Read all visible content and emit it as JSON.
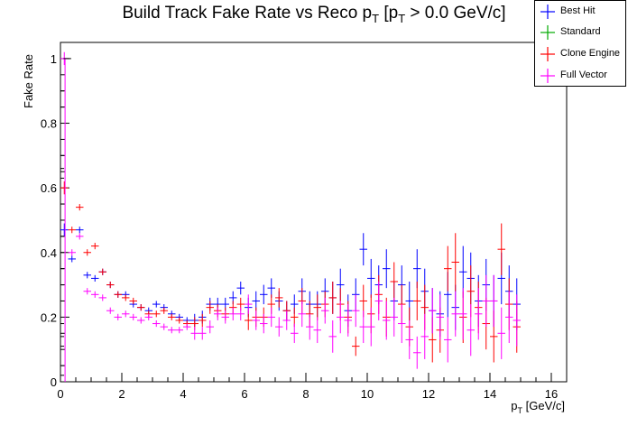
{
  "chart_data": {
    "type": "scatter",
    "title_prefix": "Build Track Fake Rate vs Reco p",
    "title_sub1": "T",
    "title_mid": " [p",
    "title_sub2": "T",
    "title_suffix": " > 0.0 GeV/c]",
    "xlabel_main": "p",
    "xlabel_sub": "T",
    "xlabel_unit": " [GeV/c]",
    "ylabel": "Fake Rate",
    "xlim": [
      0,
      16.5
    ],
    "ylim": [
      0,
      1.05
    ],
    "xticks": [
      0,
      2,
      4,
      6,
      8,
      10,
      12,
      14,
      16
    ],
    "yticks": [
      0,
      0.2,
      0.4,
      0.6,
      0.8,
      1
    ],
    "ytick_labels": [
      "0",
      "0.2",
      "0.4",
      "0.6",
      "0.8",
      "1"
    ],
    "legend_position": "top-right",
    "series": [
      {
        "name": "Best Hit",
        "color": "#0000ff",
        "points": [
          [
            0.125,
            0.47,
            0.02
          ],
          [
            0.375,
            0.38,
            0.01
          ],
          [
            0.625,
            0.47,
            0.01
          ],
          [
            0.875,
            0.33,
            0.01
          ],
          [
            1.125,
            0.32,
            0.01
          ],
          [
            1.375,
            0.34,
            0.01
          ],
          [
            1.625,
            0.3,
            0.01
          ],
          [
            1.875,
            0.27,
            0.01
          ],
          [
            2.125,
            0.27,
            0.01
          ],
          [
            2.375,
            0.24,
            0.01
          ],
          [
            2.625,
            0.23,
            0.01
          ],
          [
            2.875,
            0.22,
            0.01
          ],
          [
            3.125,
            0.24,
            0.01
          ],
          [
            3.375,
            0.23,
            0.01
          ],
          [
            3.625,
            0.21,
            0.01
          ],
          [
            3.875,
            0.2,
            0.01
          ],
          [
            4.125,
            0.19,
            0.01
          ],
          [
            4.375,
            0.19,
            0.02
          ],
          [
            4.625,
            0.2,
            0.02
          ],
          [
            4.875,
            0.24,
            0.02
          ],
          [
            5.125,
            0.24,
            0.02
          ],
          [
            5.375,
            0.24,
            0.02
          ],
          [
            5.625,
            0.26,
            0.02
          ],
          [
            5.875,
            0.29,
            0.02
          ],
          [
            6.125,
            0.23,
            0.03
          ],
          [
            6.375,
            0.25,
            0.03
          ],
          [
            6.625,
            0.27,
            0.03
          ],
          [
            6.875,
            0.29,
            0.03
          ],
          [
            7.125,
            0.25,
            0.03
          ],
          [
            7.375,
            0.22,
            0.03
          ],
          [
            7.625,
            0.24,
            0.03
          ],
          [
            7.875,
            0.28,
            0.04
          ],
          [
            8.125,
            0.24,
            0.04
          ],
          [
            8.375,
            0.24,
            0.04
          ],
          [
            8.625,
            0.28,
            0.04
          ],
          [
            8.875,
            0.26,
            0.05
          ],
          [
            9.125,
            0.3,
            0.05
          ],
          [
            9.375,
            0.22,
            0.05
          ],
          [
            9.625,
            0.27,
            0.05
          ],
          [
            9.875,
            0.41,
            0.05
          ],
          [
            10.125,
            0.32,
            0.06
          ],
          [
            10.375,
            0.3,
            0.06
          ],
          [
            10.625,
            0.35,
            0.06
          ],
          [
            10.875,
            0.25,
            0.06
          ],
          [
            11.125,
            0.3,
            0.06
          ],
          [
            11.375,
            0.25,
            0.06
          ],
          [
            11.625,
            0.35,
            0.06
          ],
          [
            11.875,
            0.28,
            0.07
          ],
          [
            12.125,
            0.22,
            0.07
          ],
          [
            12.375,
            0.21,
            0.07
          ],
          [
            12.625,
            0.27,
            0.07
          ],
          [
            12.875,
            0.23,
            0.07
          ],
          [
            13.125,
            0.34,
            0.08
          ],
          [
            13.375,
            0.32,
            0.08
          ],
          [
            13.625,
            0.25,
            0.08
          ],
          [
            13.875,
            0.3,
            0.08
          ],
          [
            14.125,
            0.25,
            0.08
          ],
          [
            14.375,
            0.32,
            0.08
          ],
          [
            14.625,
            0.28,
            0.08
          ],
          [
            14.875,
            0.24,
            0.08
          ]
        ]
      },
      {
        "name": "Standard",
        "color": "#00aa00",
        "points": []
      },
      {
        "name": "Clone Engine",
        "color": "#ff0000",
        "points": [
          [
            0.125,
            0.6,
            0.02
          ],
          [
            0.375,
            0.47,
            0.01
          ],
          [
            0.625,
            0.54,
            0.01
          ],
          [
            0.875,
            0.4,
            0.01
          ],
          [
            1.125,
            0.42,
            0.01
          ],
          [
            1.375,
            0.34,
            0.01
          ],
          [
            1.625,
            0.3,
            0.01
          ],
          [
            1.875,
            0.27,
            0.01
          ],
          [
            2.125,
            0.26,
            0.01
          ],
          [
            2.375,
            0.25,
            0.01
          ],
          [
            2.625,
            0.23,
            0.01
          ],
          [
            2.875,
            0.21,
            0.01
          ],
          [
            3.125,
            0.21,
            0.01
          ],
          [
            3.375,
            0.22,
            0.01
          ],
          [
            3.625,
            0.2,
            0.01
          ],
          [
            3.875,
            0.19,
            0.01
          ],
          [
            4.125,
            0.18,
            0.01
          ],
          [
            4.375,
            0.18,
            0.02
          ],
          [
            4.625,
            0.19,
            0.02
          ],
          [
            4.875,
            0.23,
            0.02
          ],
          [
            5.125,
            0.22,
            0.02
          ],
          [
            5.375,
            0.21,
            0.02
          ],
          [
            5.625,
            0.23,
            0.02
          ],
          [
            5.875,
            0.24,
            0.02
          ],
          [
            6.125,
            0.19,
            0.03
          ],
          [
            6.375,
            0.2,
            0.03
          ],
          [
            6.625,
            0.2,
            0.03
          ],
          [
            6.875,
            0.24,
            0.03
          ],
          [
            7.125,
            0.26,
            0.03
          ],
          [
            7.375,
            0.22,
            0.03
          ],
          [
            7.625,
            0.2,
            0.03
          ],
          [
            7.875,
            0.25,
            0.04
          ],
          [
            8.125,
            0.21,
            0.04
          ],
          [
            8.375,
            0.23,
            0.04
          ],
          [
            8.625,
            0.24,
            0.04
          ],
          [
            8.875,
            0.26,
            0.05
          ],
          [
            9.125,
            0.24,
            0.05
          ],
          [
            9.375,
            0.2,
            0.05
          ],
          [
            9.625,
            0.11,
            0.03
          ],
          [
            9.875,
            0.25,
            0.05
          ],
          [
            10.125,
            0.21,
            0.06
          ],
          [
            10.375,
            0.27,
            0.06
          ],
          [
            10.625,
            0.2,
            0.06
          ],
          [
            10.875,
            0.31,
            0.06
          ],
          [
            11.125,
            0.24,
            0.06
          ],
          [
            11.375,
            0.17,
            0.06
          ],
          [
            11.625,
            0.25,
            0.06
          ],
          [
            11.875,
            0.23,
            0.07
          ],
          [
            12.125,
            0.13,
            0.07
          ],
          [
            12.375,
            0.16,
            0.07
          ],
          [
            12.625,
            0.35,
            0.07
          ],
          [
            12.875,
            0.37,
            0.09
          ],
          [
            13.125,
            0.2,
            0.08
          ],
          [
            13.375,
            0.28,
            0.08
          ],
          [
            13.625,
            0.23,
            0.08
          ],
          [
            13.875,
            0.18,
            0.08
          ],
          [
            14.125,
            0.14,
            0.08
          ],
          [
            14.375,
            0.41,
            0.08
          ],
          [
            14.625,
            0.24,
            0.08
          ],
          [
            14.875,
            0.17,
            0.08
          ]
        ]
      },
      {
        "name": "Full Vector",
        "color": "#ff00ff",
        "points": [
          [
            0.125,
            1.0,
            0.02
          ],
          [
            0.375,
            0.4,
            0.01
          ],
          [
            0.625,
            0.45,
            0.01
          ],
          [
            0.875,
            0.28,
            0.01
          ],
          [
            1.125,
            0.27,
            0.01
          ],
          [
            1.375,
            0.26,
            0.01
          ],
          [
            1.625,
            0.22,
            0.01
          ],
          [
            1.875,
            0.2,
            0.01
          ],
          [
            2.125,
            0.21,
            0.01
          ],
          [
            2.375,
            0.2,
            0.01
          ],
          [
            2.625,
            0.19,
            0.01
          ],
          [
            2.875,
            0.2,
            0.01
          ],
          [
            3.125,
            0.18,
            0.01
          ],
          [
            3.375,
            0.17,
            0.01
          ],
          [
            3.625,
            0.16,
            0.01
          ],
          [
            3.875,
            0.16,
            0.01
          ],
          [
            4.125,
            0.17,
            0.01
          ],
          [
            4.375,
            0.15,
            0.02
          ],
          [
            4.625,
            0.15,
            0.02
          ],
          [
            4.875,
            0.17,
            0.02
          ],
          [
            5.125,
            0.21,
            0.02
          ],
          [
            5.375,
            0.2,
            0.02
          ],
          [
            5.625,
            0.21,
            0.02
          ],
          [
            5.875,
            0.21,
            0.02
          ],
          [
            6.125,
            0.24,
            0.03
          ],
          [
            6.375,
            0.19,
            0.03
          ],
          [
            6.625,
            0.18,
            0.03
          ],
          [
            6.875,
            0.2,
            0.03
          ],
          [
            7.125,
            0.17,
            0.03
          ],
          [
            7.375,
            0.19,
            0.03
          ],
          [
            7.625,
            0.15,
            0.03
          ],
          [
            7.875,
            0.21,
            0.04
          ],
          [
            8.125,
            0.17,
            0.04
          ],
          [
            8.375,
            0.16,
            0.04
          ],
          [
            8.625,
            0.22,
            0.04
          ],
          [
            8.875,
            0.14,
            0.05
          ],
          [
            9.125,
            0.2,
            0.05
          ],
          [
            9.375,
            0.19,
            0.05
          ],
          [
            9.625,
            0.22,
            0.05
          ],
          [
            9.875,
            0.17,
            0.05
          ],
          [
            10.125,
            0.17,
            0.06
          ],
          [
            10.375,
            0.25,
            0.06
          ],
          [
            10.625,
            0.19,
            0.06
          ],
          [
            10.875,
            0.2,
            0.06
          ],
          [
            11.125,
            0.18,
            0.06
          ],
          [
            11.375,
            0.13,
            0.06
          ],
          [
            11.625,
            0.09,
            0.05
          ],
          [
            11.875,
            0.14,
            0.07
          ],
          [
            12.125,
            0.22,
            0.07
          ],
          [
            12.375,
            0.2,
            0.07
          ],
          [
            12.625,
            0.13,
            0.07
          ],
          [
            12.875,
            0.21,
            0.07
          ],
          [
            13.125,
            0.21,
            0.08
          ],
          [
            13.375,
            0.16,
            0.08
          ],
          [
            13.625,
            0.21,
            0.08
          ],
          [
            13.875,
            0.25,
            0.08
          ],
          [
            14.125,
            0.25,
            0.08
          ],
          [
            14.375,
            0.15,
            0.08
          ],
          [
            14.625,
            0.2,
            0.08
          ],
          [
            14.875,
            0.19,
            0.08
          ]
        ]
      }
    ],
    "low_pt_points": [
      [
        0.06,
        0.63
      ],
      [
        0.06,
        0.55
      ],
      [
        0.06,
        0.45
      ],
      [
        0.06,
        0.4
      ],
      [
        0.06,
        0.35
      ],
      [
        0.06,
        0.3
      ],
      [
        0.06,
        0.25
      ],
      [
        0.06,
        0.18
      ],
      [
        0.06,
        0.14
      ],
      [
        0.06,
        0.11
      ],
      [
        0.06,
        0.05
      ],
      [
        0.06,
        0.02
      ],
      [
        0.06,
        0.85
      ],
      [
        0.06,
        0.9
      ],
      [
        0.06,
        0.7
      ],
      [
        0.06,
        0.66
      ]
    ]
  },
  "legend": {
    "items": [
      "Best Hit",
      "Standard",
      "Clone Engine",
      "Full Vector"
    ]
  }
}
